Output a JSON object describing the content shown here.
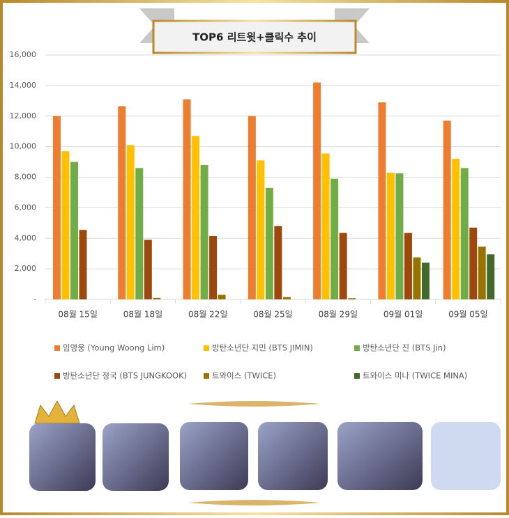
{
  "chart_data": {
    "type": "bar",
    "title": "TOP6 리트윗+클릭수 추이",
    "categories": [
      "08월 15일",
      "08월 18일",
      "08월 22일",
      "08월 25일",
      "08월 29일",
      "09월 01일",
      "09월 05일"
    ],
    "series": [
      {
        "name": "임영웅 (Young Woong Lim)",
        "color": "#ed7d31",
        "values": [
          12000,
          12650,
          13100,
          12000,
          14200,
          12900,
          11700
        ]
      },
      {
        "name": "방탄소년단 지민 (BTS JIMIN)",
        "color": "#ffc000",
        "values": [
          9700,
          10100,
          10700,
          9100,
          9550,
          8300,
          9200
        ]
      },
      {
        "name": "방탄소년단 진 (BTS Jin)",
        "color": "#70ad47",
        "values": [
          9000,
          8600,
          8800,
          7300,
          7900,
          8250,
          8600
        ]
      },
      {
        "name": "방탄소년단 정국 (BTS JUNGKOOK)",
        "color": "#9e480e",
        "values": [
          4550,
          3900,
          4150,
          4800,
          4350,
          4350,
          4700
        ]
      },
      {
        "name": "트와이스 (TWICE)",
        "color": "#997300",
        "values": [
          null,
          100,
          300,
          150,
          80,
          2750,
          3450
        ]
      },
      {
        "name": "트와이스 미나 (TWICE MINA)",
        "color": "#43682b",
        "values": [
          null,
          null,
          null,
          null,
          null,
          2400,
          2950
        ]
      }
    ],
    "ylim": [
      0,
      16000
    ],
    "yticks": [
      {
        "value": 0,
        "label": "-"
      },
      {
        "value": 2000,
        "label": "2,000"
      },
      {
        "value": 4000,
        "label": "4,000"
      },
      {
        "value": 6000,
        "label": "6,000"
      },
      {
        "value": 8000,
        "label": "8,000"
      },
      {
        "value": 10000,
        "label": "10,000"
      },
      {
        "value": 12000,
        "label": "12,000"
      },
      {
        "value": 14000,
        "label": "14,000"
      },
      {
        "value": 16000,
        "label": "16,000"
      }
    ],
    "grid": true,
    "legend": "bottom"
  }
}
